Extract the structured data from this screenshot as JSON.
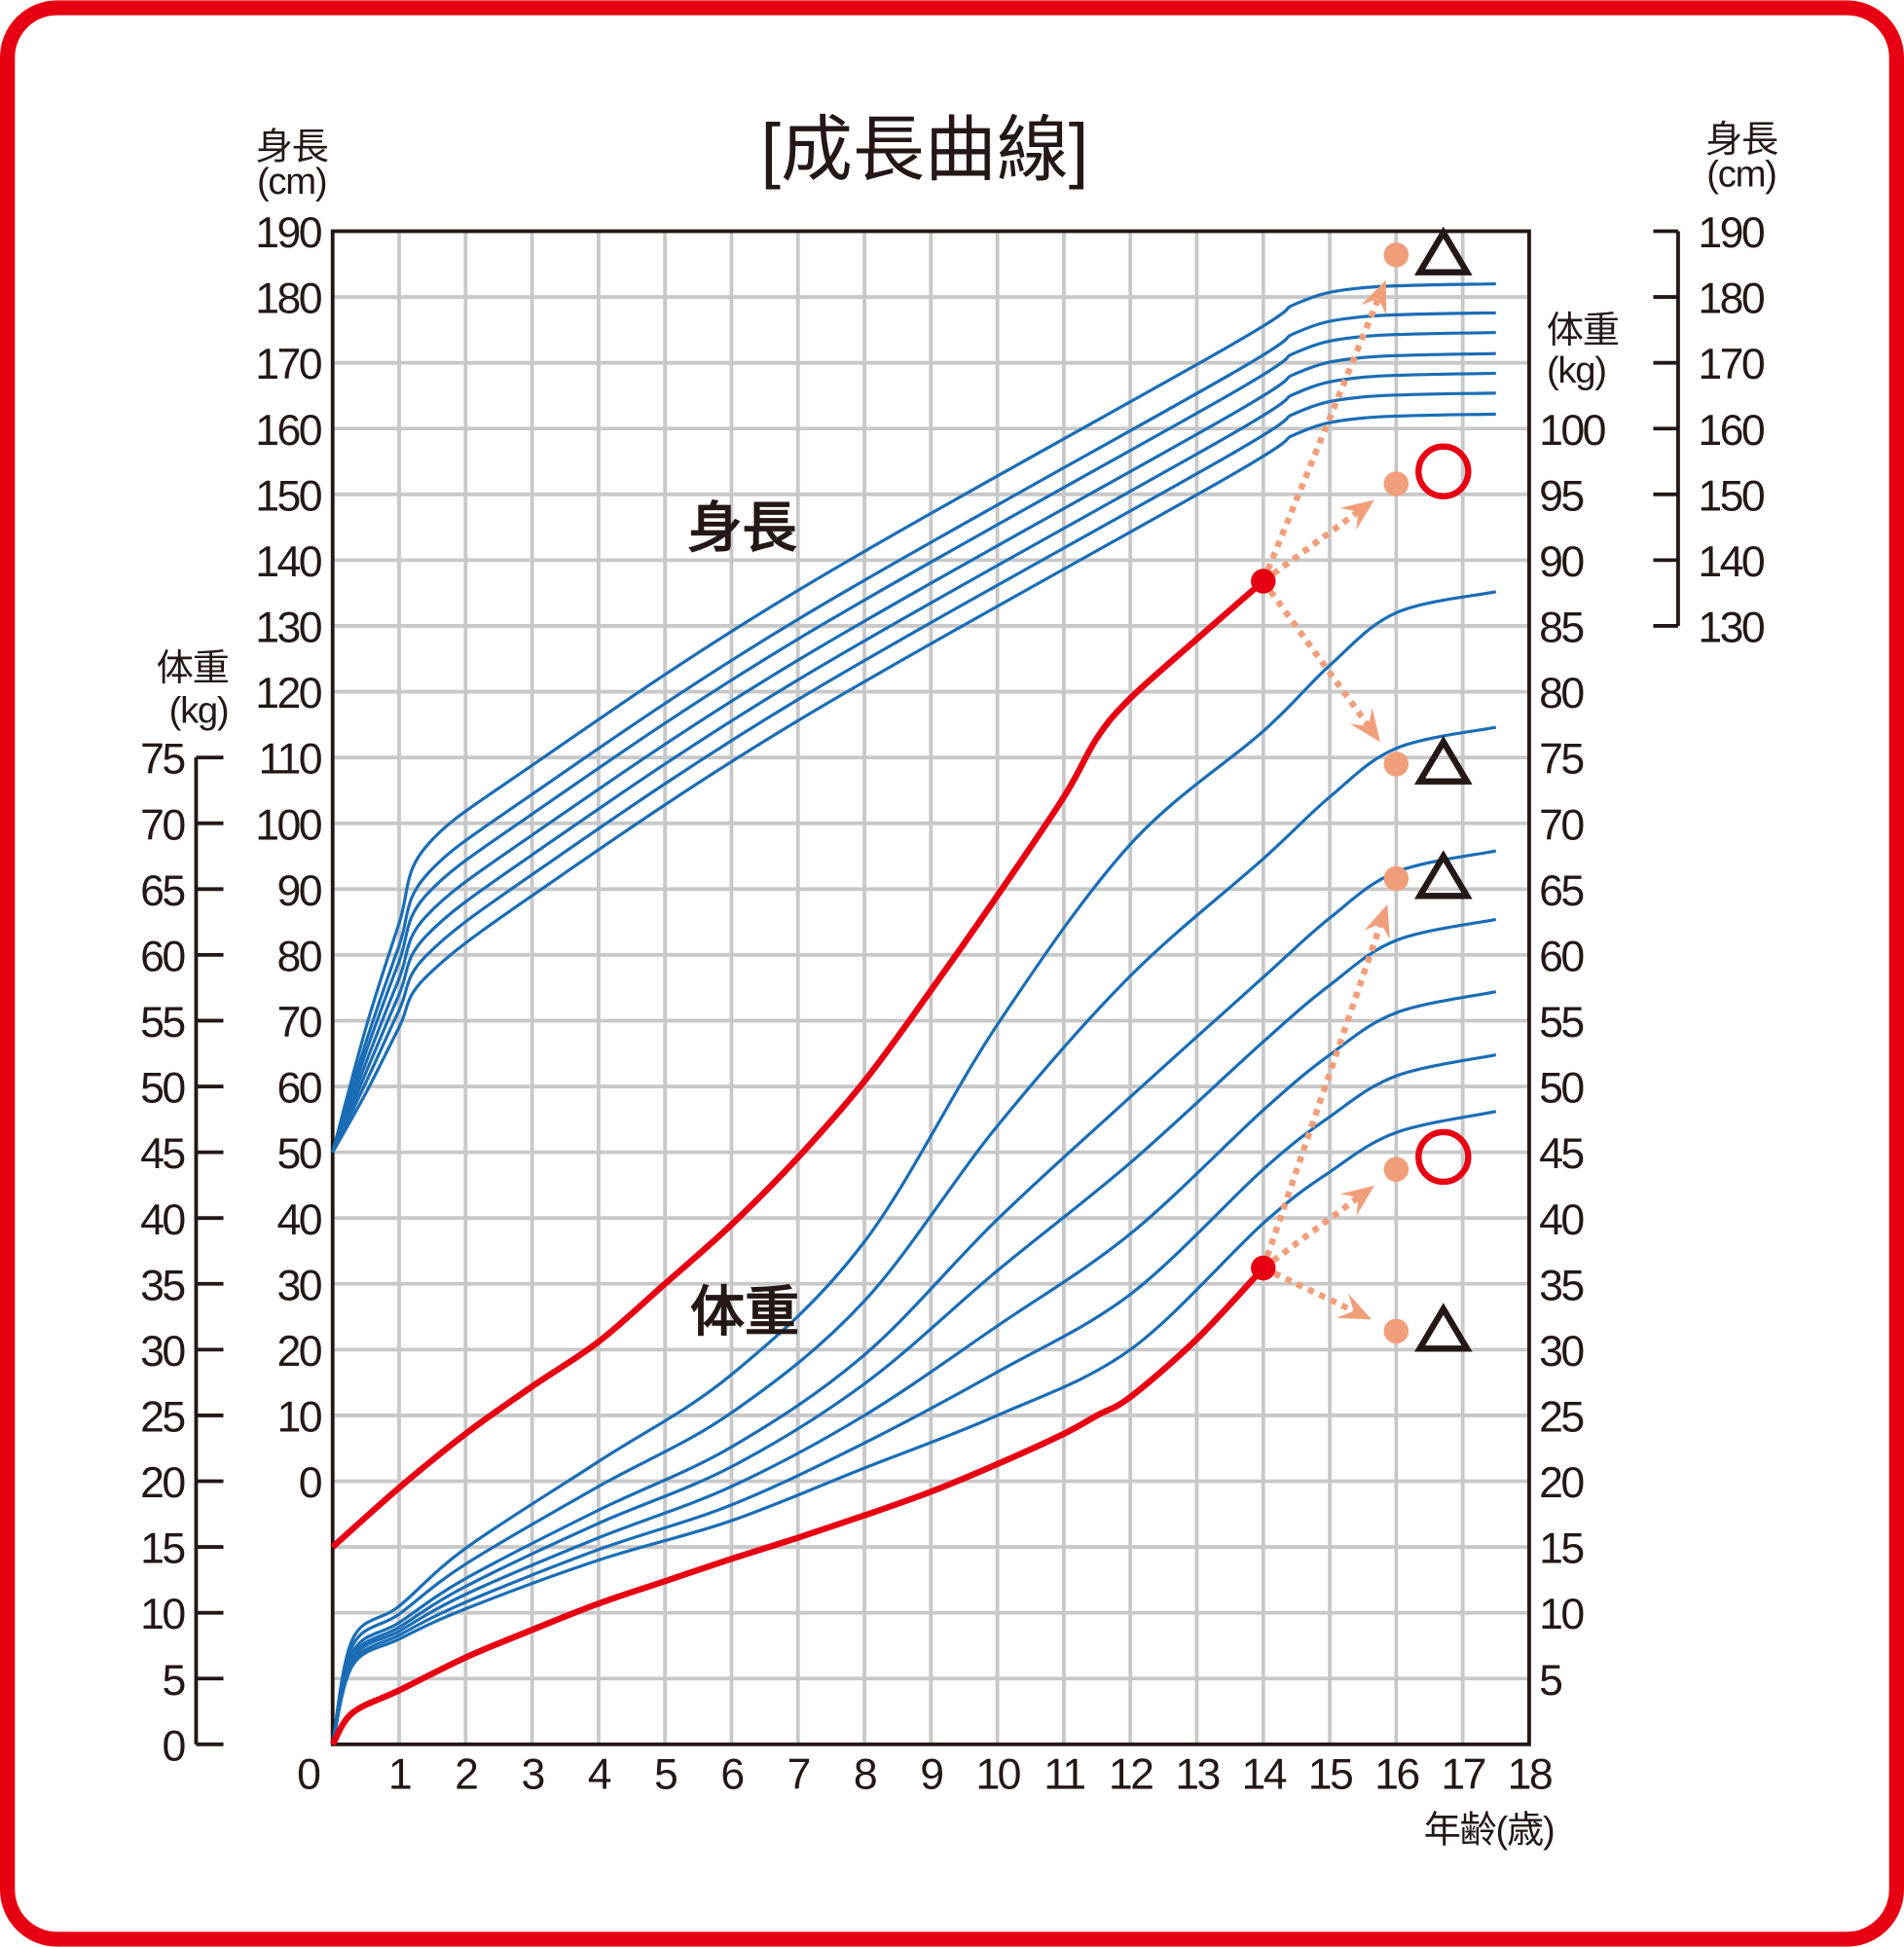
{
  "chart_data": {
    "type": "line",
    "title": "[成長曲線]",
    "xlabel": "年齢(歳)",
    "xlim": [
      0,
      18
    ],
    "x_ticks": [
      0,
      1,
      2,
      3,
      4,
      5,
      6,
      7,
      8,
      9,
      10,
      11,
      12,
      13,
      14,
      15,
      16,
      17,
      18
    ],
    "y_units_note": "plot units follow the inner right weight axis (kg); height cm maps as u = 20 + cm/2",
    "ylim": [
      0,
      115
    ],
    "grid": true,
    "axes": {
      "left_weight": {
        "label_top": "体重",
        "label_unit": "(kg)",
        "ticks": [
          0,
          5,
          10,
          15,
          20,
          25,
          30,
          35,
          40,
          45,
          50,
          55,
          60,
          65,
          70,
          75
        ]
      },
      "left_height": {
        "label_top": "身長",
        "label_unit": "(cm)",
        "ticks": [
          0,
          10,
          20,
          30,
          40,
          50,
          60,
          70,
          80,
          90,
          100,
          110,
          120,
          130,
          140,
          150,
          160,
          170,
          180,
          190
        ]
      },
      "right_weight": {
        "label_top": "体重",
        "label_unit": "(kg)",
        "ticks": [
          5,
          10,
          15,
          20,
          25,
          30,
          35,
          40,
          45,
          50,
          55,
          60,
          65,
          70,
          75,
          80,
          85,
          90,
          95,
          100
        ]
      },
      "right_height": {
        "label_top": "身長",
        "label_unit": "(cm)",
        "ticks": [
          130,
          140,
          150,
          160,
          170,
          180,
          190
        ]
      }
    },
    "annotations": {
      "height_label": "身長",
      "weight_label": "体重"
    },
    "colors": {
      "reference": "#1a6db5",
      "child": "#e60012",
      "forecast": "#f19e7a",
      "grid": "#c8c8c8",
      "frame": "#e60012"
    },
    "height_reference_ages": [
      0,
      0.5,
      1,
      1.4,
      3,
      7,
      13.5,
      14.5,
      15.5,
      17.5
    ],
    "height_reference": [
      [
        45,
        54.45,
        62.4,
        68.2,
        74.4,
        87.7,
        106.3,
        109.5,
        110.7,
        111.0
      ],
      [
        45,
        53.35,
        60.7,
        66.0,
        72.2,
        85.5,
        104.1,
        107.3,
        108.5,
        108.8
      ],
      [
        45,
        52.6,
        59.5,
        64.5,
        70.7,
        84.0,
        102.6,
        105.8,
        107.0,
        107.3
      ],
      [
        45,
        51.8,
        58.2,
        62.9,
        69.1,
        82.4,
        101.0,
        104.2,
        105.4,
        105.7
      ],
      [
        45,
        51.05,
        57.0,
        61.4,
        67.6,
        80.9,
        99.5,
        102.7,
        103.9,
        104.2
      ],
      [
        45,
        50.3,
        55.8,
        59.9,
        66.1,
        79.4,
        98.0,
        101.2,
        102.4,
        102.7
      ],
      [
        45,
        49.5,
        54.5,
        58.3,
        64.5,
        77.8,
        96.4,
        99.6,
        100.8,
        101.1
      ]
    ],
    "weight_reference_ages": [
      0,
      0.3,
      1,
      2,
      4,
      6,
      8,
      10,
      12,
      14,
      15,
      16,
      17.5
    ],
    "weight_reference": [
      [
        0,
        8,
        10.5,
        14.9,
        21.5,
        28.1,
        38.2,
        54.7,
        68.4,
        77,
        82,
        86,
        87.6
      ],
      [
        0,
        7.5,
        9.9,
        13.7,
        19.6,
        25.2,
        33.7,
        47,
        58.4,
        67.3,
        72,
        75.7,
        77.3
      ],
      [
        0,
        7,
        9.25,
        12.6,
        17.8,
        22.6,
        29.6,
        39.9,
        49.2,
        58.3,
        62.8,
        66.3,
        67.9
      ],
      [
        0,
        6.7,
        8.9,
        12,
        16.8,
        21.1,
        27.4,
        36,
        44.2,
        53.4,
        57.7,
        61.1,
        62.7
      ],
      [
        0,
        6.5,
        8.6,
        11.4,
        15.7,
        19.6,
        25,
        31.8,
        38.8,
        48.2,
        52.4,
        55.6,
        57.2
      ],
      [
        0,
        6.2,
        8.3,
        10.8,
        14.8,
        18.2,
        22.9,
        28.3,
        34.2,
        43.7,
        47.7,
        50.8,
        52.4
      ],
      [
        0,
        6,
        8,
        10.3,
        14,
        17,
        21,
        25,
        30,
        39.6,
        43.5,
        46.5,
        48.1
      ]
    ],
    "child_height": {
      "x": [
        0,
        1,
        2,
        3,
        4,
        5,
        6,
        7,
        8,
        9,
        10,
        11,
        11.5,
        12,
        13,
        14
      ],
      "y": [
        15,
        19.5,
        23.6,
        27.2,
        30.6,
        35,
        39.5,
        44.6,
        50.4,
        57.3,
        64.5,
        72,
        76.5,
        79.5,
        84,
        88.4
      ]
    },
    "child_weight": {
      "x": [
        0,
        0.3,
        1,
        2,
        3,
        4,
        5,
        6,
        7,
        8,
        9,
        10,
        11,
        11.5,
        12,
        13,
        14
      ],
      "y": [
        0,
        2.4,
        4.1,
        6.6,
        8.7,
        10.7,
        12.4,
        14.1,
        15.7,
        17.4,
        19.2,
        21.3,
        23.6,
        25,
        26.4,
        30.8,
        36.2
      ]
    },
    "forecasts": [
      {
        "from": [
          14,
          88.4
        ],
        "to": [
          16,
          113.2
        ],
        "mark": "triangle"
      },
      {
        "from": [
          14,
          88.4
        ],
        "to": [
          16,
          95.8
        ],
        "mark": "circle"
      },
      {
        "from": [
          14,
          88.4
        ],
        "to": [
          16,
          74.5
        ],
        "mark": "triangle"
      },
      {
        "from": [
          14,
          36.2
        ],
        "to": [
          16,
          65.8
        ],
        "mark": "triangle"
      },
      {
        "from": [
          14,
          36.2
        ],
        "to": [
          16,
          43.7
        ],
        "mark": "circle"
      },
      {
        "from": [
          14,
          36.2
        ],
        "to": [
          16,
          31.4
        ],
        "mark": "triangle"
      }
    ]
  }
}
